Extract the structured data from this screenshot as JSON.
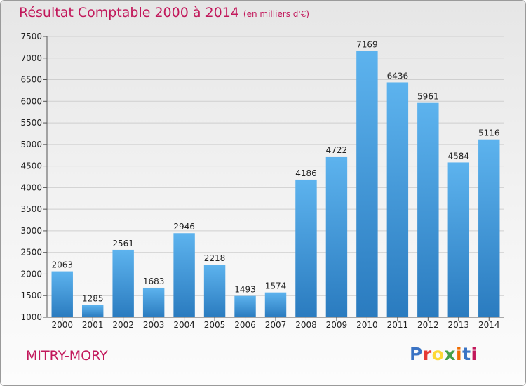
{
  "header": {
    "title": "Résultat Comptable 2000 à 2014",
    "subtitle": "(en milliers d'€)"
  },
  "footer": {
    "city": "MITRY-MORY",
    "logo_letters": [
      {
        "ch": "P",
        "color": "#3a73c4"
      },
      {
        "ch": "r",
        "color": "#e53935"
      },
      {
        "ch": "o",
        "color": "#fdd835"
      },
      {
        "ch": "x",
        "color": "#43a047"
      },
      {
        "ch": "i",
        "color": "#ef6c00"
      },
      {
        "ch": "t",
        "color": "#3a73c4"
      },
      {
        "ch": "i",
        "color": "#c2185b"
      }
    ]
  },
  "colors": {
    "bar_top": "#5db3ee",
    "bar_bottom": "#2a7bbf",
    "title": "#c2185b",
    "grid": "#cfcfcf"
  },
  "chart_data": {
    "type": "bar",
    "title": "Résultat Comptable 2000 à 2014",
    "subtitle": "(en milliers d'€)",
    "xlabel": "",
    "ylabel": "",
    "categories": [
      "2000",
      "2001",
      "2002",
      "2003",
      "2004",
      "2005",
      "2006",
      "2007",
      "2008",
      "2009",
      "2010",
      "2011",
      "2012",
      "2013",
      "2014"
    ],
    "values": [
      2063,
      1285,
      2561,
      1683,
      2946,
      2218,
      1493,
      1574,
      4186,
      4722,
      7169,
      6436,
      5961,
      4584,
      5116
    ],
    "ylim": [
      1000,
      7500
    ],
    "yticks": [
      1000,
      1500,
      2000,
      2500,
      3000,
      3500,
      4000,
      4500,
      5000,
      5500,
      6000,
      6500,
      7000,
      7500
    ],
    "grid": true
  }
}
